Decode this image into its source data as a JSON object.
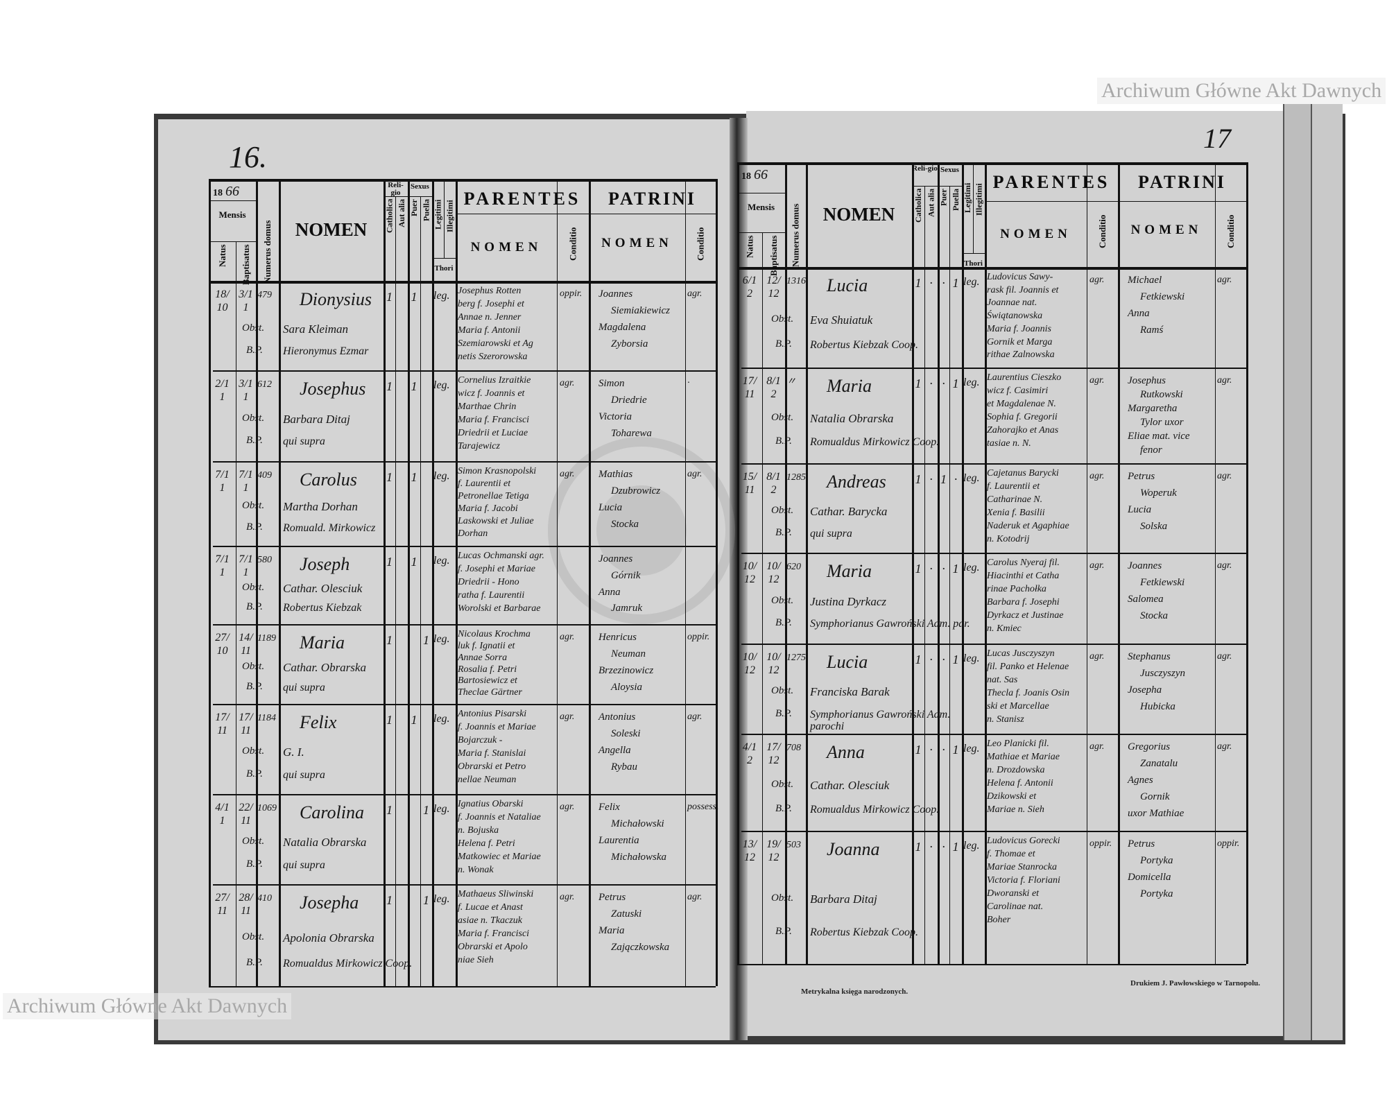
{
  "watermark": "Archiwum Główne Akt Dawnych",
  "seal_text": "ARCHIWUM GŁÓWNE AKT DAWNYCH",
  "labels": {
    "obst": "Obst.",
    "bp": "B.P."
  },
  "header": {
    "year_printed": "18",
    "mensis": "Mensis",
    "natus": "Natus",
    "baptisatus": "Baptisatus",
    "numerus_domus": "Numerus domus",
    "nomen": "NOMEN",
    "religio": "Reli-gio",
    "catholica": "Catholica",
    "aut_alia": "Aut alia",
    "sexus": "Sexus",
    "puer": "Puer",
    "puella": "Puella",
    "legitimi": "Legitimi",
    "illegitimi": "Illegitimi",
    "thori": "Thori",
    "parentes": "PARENTES",
    "parentes_nomen": "NOMEN",
    "conditio": "Conditio",
    "patrini": "PATRINI",
    "patrini_nomen": "NOMEN"
  },
  "footer": {
    "left": "Metrykalna księga narodzonych.",
    "right": "Drukiem J. Pawłowskiego w Tarnopolu."
  },
  "pages": [
    {
      "page_number": "16.",
      "year_hand": "66",
      "rows": [
        {
          "natus": "18/10",
          "baptisatus": "3/11",
          "domus": "479",
          "nomen": "Dionysius",
          "obstetrix": "Sara Kleiman",
          "baptizans": "Hieronymus Ezmar",
          "catholica": "1",
          "aut_alia": "",
          "puer": "1",
          "puella": "",
          "legitimi": "leg.",
          "parentes": [
            "Josephus Rotten",
            "berg f. Josephi et",
            "Annae n. Jenner",
            "Maria f. Antonii",
            "Szemiarowski et Ag",
            "netis Szerorowska"
          ],
          "parentes_conditio": "oppir.",
          "patrini": [
            "Joannes",
            "Siemiakiewicz",
            "Magdalena",
            "Zyborsia"
          ],
          "patrini_conditio": "agr."
        },
        {
          "natus": "2/11",
          "baptisatus": "3/11",
          "domus": "612",
          "nomen": "Josephus",
          "obstetrix": "Barbara Ditaj",
          "baptizans": "qui supra",
          "catholica": "1",
          "aut_alia": "",
          "puer": "1",
          "puella": "",
          "legitimi": "leg.",
          "parentes": [
            "Cornelius Izraitkie",
            "wicz f. Joannis et",
            "Marthae Chrin",
            "Maria f. Francisci",
            "Driedrii et Luciae",
            "Tarajewicz"
          ],
          "parentes_conditio": "agr.",
          "patrini": [
            "Simon",
            "Driedrie",
            "Victoria",
            "Toharewa"
          ],
          "patrini_conditio": "·"
        },
        {
          "natus": "7/11",
          "baptisatus": "7/11",
          "domus": "409",
          "nomen": "Carolus",
          "obstetrix": "Martha Dorhan",
          "baptizans": "Romuald. Mirkowicz",
          "catholica": "1",
          "aut_alia": "",
          "puer": "1",
          "puella": "",
          "legitimi": "leg.",
          "parentes": [
            "Simon Krasnopolski",
            "f. Laurentii et",
            "Petronellae Tetiga",
            "Maria f. Jacobi",
            "Laskowski et Juliae",
            "Dorhan"
          ],
          "parentes_conditio": "agr.",
          "patrini": [
            "Mathias",
            "Dzubrowicz",
            "Lucia",
            "Stocka"
          ],
          "patrini_conditio": "agr."
        },
        {
          "natus": "7/11",
          "baptisatus": "7/11",
          "domus": "580",
          "nomen": "Joseph",
          "obstetrix": "Cathar. Olesciuk",
          "baptizans": "Robertus Kiebzak",
          "catholica": "1",
          "aut_alia": "",
          "puer": "1",
          "puella": "",
          "legitimi": "leg.",
          "parentes": [
            "Lucas Ochmanski agr.",
            "f. Josephi et Mariae",
            "Driedrii - Hono",
            "ratha f. Laurentii",
            "Worolski et Barbarae"
          ],
          "parentes_conditio": "",
          "patrini": [
            "Joannes",
            "Górnik",
            "Anna",
            "Jamruk"
          ],
          "patrini_conditio": ""
        },
        {
          "natus": "27/10",
          "baptisatus": "14/11",
          "domus": "1189",
          "nomen": "Maria",
          "obstetrix": "Cathar. Obrarska",
          "baptizans": "qui supra",
          "catholica": "1",
          "aut_alia": "",
          "puer": "",
          "puella": "1",
          "legitimi": "leg.",
          "parentes": [
            "Nicolaus Krochma",
            "luk f. Ignatii et",
            "Annae Sorra",
            "Rosalia f. Petri",
            "Bartosiewicz et",
            "Theclae Gärtner"
          ],
          "parentes_conditio": "agr.",
          "patrini": [
            "Henricus",
            "Neuman",
            "Brzezinowicz",
            "Aloysia"
          ],
          "patrini_conditio": "oppir."
        },
        {
          "natus": "17/11",
          "baptisatus": "17/11",
          "domus": "1184",
          "nomen": "Felix",
          "obstetrix": "G. I.",
          "baptizans": "qui supra",
          "catholica": "1",
          "aut_alia": "",
          "puer": "1",
          "puella": "",
          "legitimi": "leg.",
          "parentes": [
            "Antonius Pisarski",
            "f. Joannis et Mariae",
            "Bojarczuk -",
            "Maria f. Stanislai",
            "Obrarski et Petro",
            "nellae Neuman"
          ],
          "parentes_conditio": "agr.",
          "patrini": [
            "Antonius",
            "Soleski",
            "Angella",
            "Rybau"
          ],
          "patrini_conditio": "agr."
        },
        {
          "natus": "4/11",
          "baptisatus": "22/11",
          "domus": "1069",
          "nomen": "Carolina",
          "obstetrix": "Natalia Obrarska",
          "baptizans": "qui supra",
          "catholica": "1",
          "aut_alia": "",
          "puer": "",
          "puella": "1",
          "legitimi": "leg.",
          "parentes": [
            "Ignatius Obarski",
            "f. Joannis et Nataliae",
            "n. Bojuska",
            "Helena f. Petri",
            "Matkowiec et Mariae",
            "n. Wonak"
          ],
          "parentes_conditio": "agr.",
          "patrini": [
            "Felix",
            "Michałowski",
            "Laurentia",
            "Michałowska"
          ],
          "patrini_conditio": "possess."
        },
        {
          "natus": "27/11",
          "baptisatus": "28/11",
          "domus": "410",
          "nomen": "Josepha",
          "obstetrix": "Apolonia Obrarska",
          "baptizans": "Romualdus Mirkowicz Coop.",
          "catholica": "1",
          "aut_alia": "",
          "puer": "",
          "puella": "1",
          "legitimi": "leg.",
          "parentes": [
            "Mathaeus Sliwinski",
            "f. Lucae et Anast",
            "asiae n. Tkaczuk",
            "Maria f. Francisci",
            "Obrarski et Apolo",
            "niae Sieh"
          ],
          "parentes_conditio": "agr.",
          "patrini": [
            "Petrus",
            "Zatuski",
            "Maria",
            "Zajączkowska"
          ],
          "patrini_conditio": "agr."
        }
      ]
    },
    {
      "page_number": "17",
      "year_hand": "66",
      "rows": [
        {
          "natus": "6/12",
          "baptisatus": "12/12",
          "domus": "1316",
          "nomen": "Lucia",
          "obstetrix": "Eva Shuiatuk",
          "baptizans": "Robertus Kiebzak Coop.",
          "catholica": "1",
          "aut_alia": "·",
          "puer": "·",
          "puella": "1",
          "legitimi": "leg.",
          "parentes": [
            "Ludovicus Sawy-",
            "rask fil. Joannis et",
            "Joannae nat.",
            "Świątanowska",
            "Maria f. Joannis",
            "Gornik et Marga",
            "rithae Zalnowska"
          ],
          "parentes_conditio": "agr.",
          "patrini": [
            "Michael",
            "Fetkiewski",
            "Anna",
            "Ramś"
          ],
          "patrini_conditio": "agr."
        },
        {
          "natus": "17/11",
          "baptisatus": "8/12",
          "domus": "〃",
          "nomen": "Maria",
          "obstetrix": "Natalia Obrarska",
          "baptizans": "Romualdus Mirkowicz Coop.",
          "catholica": "1",
          "aut_alia": "·",
          "puer": "·",
          "puella": "1",
          "legitimi": "leg.",
          "parentes": [
            "Laurentius Cieszko",
            "wicz f. Casimiri",
            "et Magdalenae N.",
            "Sophia f. Gregorii",
            "Zahorajko et Anas",
            "tasiae n. N."
          ],
          "parentes_conditio": "agr.",
          "patrini": [
            "Josephus",
            "Rutkowski",
            "Margaretha",
            "Tylor uxor",
            "Eliae mat. vice",
            "fenor"
          ],
          "patrini_conditio": "agr."
        },
        {
          "natus": "15/11",
          "baptisatus": "8/12",
          "domus": "1285",
          "nomen": "Andreas",
          "obstetrix": "Cathar. Barycka",
          "baptizans": "qui supra",
          "catholica": "1",
          "aut_alia": "·",
          "puer": "1",
          "puella": "·",
          "legitimi": "leg.",
          "parentes": [
            "Cajetanus Barycki",
            "f. Laurentii et",
            "Catharinae N.",
            "Xenia f. Basilii",
            "Naderuk et Agaphiae",
            "n. Kotodrij"
          ],
          "parentes_conditio": "agr.",
          "patrini": [
            "Petrus",
            "Woperuk",
            "Lucia",
            "Solska"
          ],
          "patrini_conditio": "agr."
        },
        {
          "natus": "10/12",
          "baptisatus": "10/12",
          "domus": "620",
          "nomen": "Maria",
          "obstetrix": "Justina Dyrkacz",
          "baptizans": "Symphorianus Gawroński Adm. par.",
          "catholica": "1",
          "aut_alia": "·",
          "puer": "·",
          "puella": "1",
          "legitimi": "leg.",
          "parentes": [
            "Carolus Nyeraj fil.",
            "Hiacinthi et Catha",
            "rinae Pachołka",
            "Barbara f. Josephi",
            "Dyrkacz et Justinae",
            "n. Kmiec"
          ],
          "parentes_conditio": "agr.",
          "patrini": [
            "Joannes",
            "Fetkiewski",
            "Salomea",
            "Stocka"
          ],
          "patrini_conditio": "agr."
        },
        {
          "natus": "10/12",
          "baptisatus": "10/12",
          "domus": "1275",
          "nomen": "Lucia",
          "obstetrix": "Franciska Barak",
          "baptizans": "Symphorianus Gawroński Adm. parochi",
          "catholica": "1",
          "aut_alia": "·",
          "puer": "·",
          "puella": "1",
          "legitimi": "leg.",
          "parentes": [
            "Lucas Jusczyszyn",
            "fil. Panko et Helenae",
            "nat. Sas",
            "Thecla f. Joanis Osin",
            "ski et Marcellae",
            "n. Stanisz"
          ],
          "parentes_conditio": "agr.",
          "patrini": [
            "Stephanus",
            "Jusczyszyn",
            "Josepha",
            "Hubicka"
          ],
          "patrini_conditio": "agr."
        },
        {
          "natus": "4/12",
          "baptisatus": "17/12",
          "domus": "708",
          "nomen": "Anna",
          "obstetrix": "Cathar. Olesciuk",
          "baptizans": "Romualdus Mirkowicz Coop.",
          "catholica": "1",
          "aut_alia": "·",
          "puer": "·",
          "puella": "1",
          "legitimi": "leg.",
          "parentes": [
            "Leo Planicki fil.",
            "Mathiae et Mariae",
            "n. Drozdowska",
            "Helena f. Antonii",
            "Dzikowski et",
            "Mariae n. Sieh"
          ],
          "parentes_conditio": "agr.",
          "patrini": [
            "Gregorius",
            "Zanatalu",
            "Agnes",
            "Gornik",
            "uxor Mathiae"
          ],
          "patrini_conditio": "agr."
        },
        {
          "natus": "13/12",
          "baptisatus": "19/12",
          "domus": "503",
          "nomen": "Joanna",
          "obstetrix": "Barbara Ditaj",
          "baptizans": "Robertus Kiebzak Coop.",
          "catholica": "1",
          "aut_alia": "·",
          "puer": "·",
          "puella": "1",
          "legitimi": "leg.",
          "parentes": [
            "Ludovicus Gorecki",
            "f. Thomae et",
            "Mariae Stanrocka",
            "Victoria f. Floriani",
            "Dworanski et",
            "Carolinae nat.",
            "Boher"
          ],
          "parentes_conditio": "oppir.",
          "patrini": [
            "Petrus",
            "Portyka",
            "Domicella",
            "Portyka"
          ],
          "patrini_conditio": "oppir."
        }
      ]
    }
  ]
}
